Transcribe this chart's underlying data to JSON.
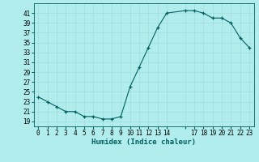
{
  "x": [
    0,
    1,
    2,
    3,
    4,
    5,
    6,
    7,
    8,
    9,
    10,
    11,
    12,
    13,
    14,
    16,
    17,
    18,
    19,
    20,
    21,
    22,
    23
  ],
  "y": [
    24,
    23,
    22,
    21,
    21,
    20,
    20,
    19.5,
    19.5,
    20,
    26,
    30,
    34,
    38,
    41,
    41.5,
    41.5,
    41,
    40,
    40,
    39,
    36,
    34
  ],
  "line_color": "#006060",
  "marker_color": "#006060",
  "bg_color": "#b2eded",
  "xlabel": "Humidex (Indice chaleur)",
  "ylim": [
    18,
    43
  ],
  "xlim": [
    -0.5,
    23.5
  ],
  "yticks": [
    19,
    21,
    23,
    25,
    27,
    29,
    31,
    33,
    35,
    37,
    39,
    41
  ],
  "xticks": [
    0,
    1,
    2,
    3,
    4,
    5,
    6,
    7,
    8,
    9,
    10,
    11,
    12,
    13,
    14,
    16,
    17,
    18,
    19,
    20,
    21,
    22,
    23
  ],
  "xtick_labels": [
    "0",
    "1",
    "2",
    "3",
    "4",
    "5",
    "6",
    "7",
    "8",
    "9",
    "10",
    "11",
    "12",
    "13",
    "14",
    "",
    "17",
    "18",
    "19",
    "20",
    "21",
    "22",
    "23"
  ],
  "label_fontsize": 6.5,
  "tick_fontsize": 5.5
}
